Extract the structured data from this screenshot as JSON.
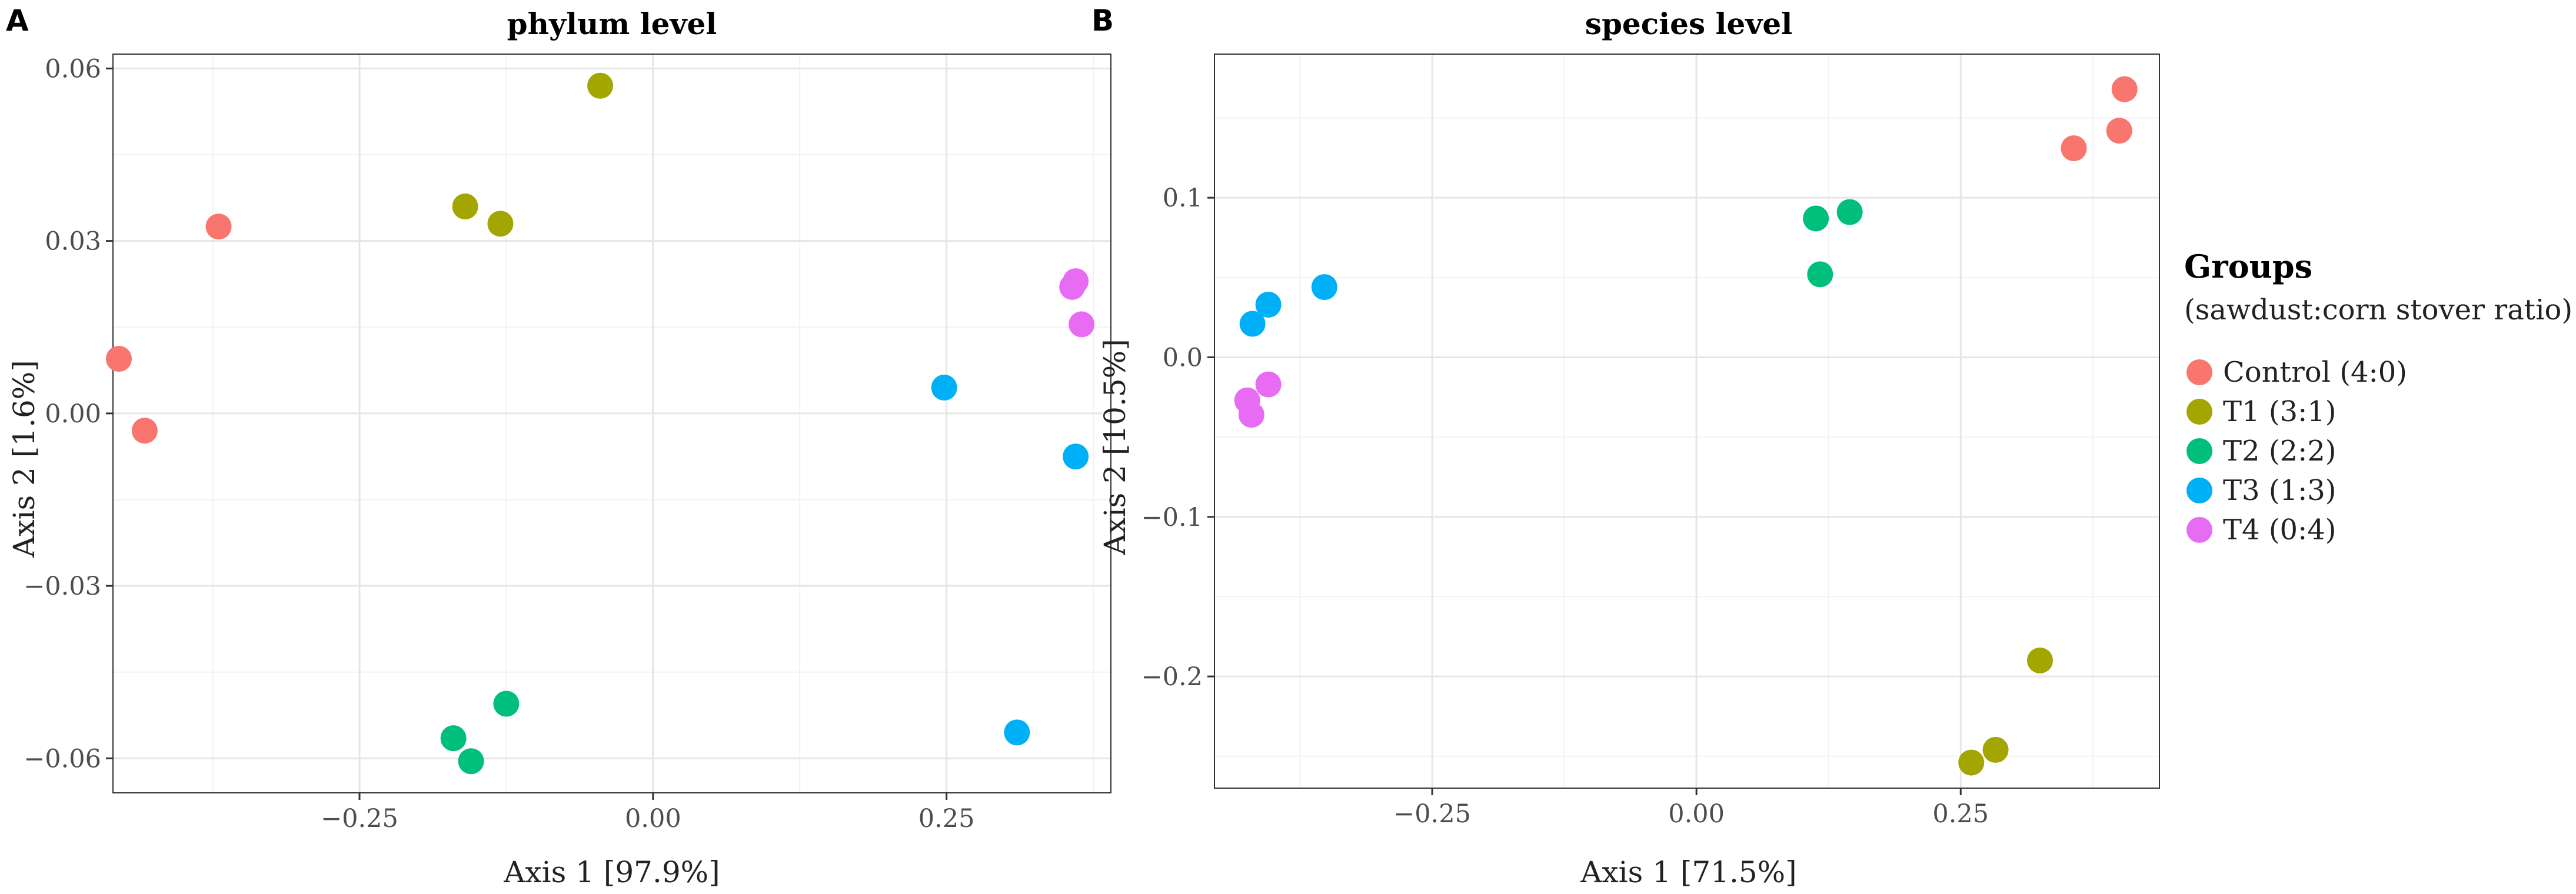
{
  "chart_data": [
    {
      "type": "scatter",
      "panel_letter": "A",
      "title": "phylum level",
      "xlabel": "Axis 1 [97.9%]",
      "ylabel": "Axis 2 [1.6%]",
      "xlim": [
        -0.46,
        0.39
      ],
      "ylim": [
        -0.066,
        0.0625
      ],
      "x_ticks": [
        -0.25,
        0.0,
        0.25
      ],
      "x_tick_labels": [
        "−0.25",
        "0.00",
        "0.25"
      ],
      "y_ticks": [
        -0.06,
        -0.03,
        0.0,
        0.03,
        0.06
      ],
      "y_tick_labels": [
        "−0.06",
        "−0.03",
        "0.00",
        "0.03",
        "0.06"
      ],
      "grid": true,
      "series": [
        {
          "name": "Control (4:0)",
          "color": "#f8766d",
          "points": [
            [
              -0.455,
              0.0095
            ],
            [
              -0.433,
              -0.003
            ],
            [
              -0.37,
              0.0325
            ]
          ]
        },
        {
          "name": "T1 (3:1)",
          "color": "#a3a500",
          "points": [
            [
              -0.16,
              0.036
            ],
            [
              -0.13,
              0.033
            ],
            [
              -0.045,
              0.057
            ]
          ]
        },
        {
          "name": "T2 (2:2)",
          "color": "#00bf7d",
          "points": [
            [
              -0.17,
              -0.0565
            ],
            [
              -0.155,
              -0.0605
            ],
            [
              -0.125,
              -0.0505
            ]
          ]
        },
        {
          "name": "T3 (1:3)",
          "color": "#00b0f6",
          "points": [
            [
              0.248,
              0.0045
            ],
            [
              0.36,
              -0.0075
            ],
            [
              0.31,
              -0.0555
            ]
          ]
        },
        {
          "name": "T4 (0:4)",
          "color": "#e76bf3",
          "points": [
            [
              0.357,
              0.022
            ],
            [
              0.36,
              0.023
            ],
            [
              0.365,
              0.0155
            ]
          ]
        }
      ]
    },
    {
      "type": "scatter",
      "panel_letter": "B",
      "title": "species level",
      "xlabel": "Axis 1 [71.5%]",
      "ylabel": "Axis 2 [10.5%]",
      "xlim": [
        -0.456,
        0.438
      ],
      "ylim": [
        -0.27,
        0.19
      ],
      "x_ticks": [
        -0.25,
        0.0,
        0.25
      ],
      "x_tick_labels": [
        "−0.25",
        "0.00",
        "0.25"
      ],
      "y_ticks": [
        -0.2,
        -0.1,
        0.0,
        0.1
      ],
      "y_tick_labels": [
        "−0.2",
        "−0.1",
        "0.0",
        "0.1"
      ],
      "grid": true,
      "series": [
        {
          "name": "Control (4:0)",
          "color": "#f8766d",
          "points": [
            [
              0.357,
              0.131
            ],
            [
              0.4,
              0.142
            ],
            [
              0.405,
              0.168
            ]
          ]
        },
        {
          "name": "T1 (3:1)",
          "color": "#a3a500",
          "points": [
            [
              0.26,
              -0.254
            ],
            [
              0.283,
              -0.246
            ],
            [
              0.325,
              -0.19
            ]
          ]
        },
        {
          "name": "T2 (2:2)",
          "color": "#00bf7d",
          "points": [
            [
              0.113,
              0.087
            ],
            [
              0.117,
              0.052
            ],
            [
              0.145,
              0.091
            ]
          ]
        },
        {
          "name": "T3 (1:3)",
          "color": "#00b0f6",
          "points": [
            [
              -0.42,
              0.021
            ],
            [
              -0.405,
              0.033
            ],
            [
              -0.352,
              0.044
            ]
          ]
        },
        {
          "name": "T4 (0:4)",
          "color": "#e76bf3",
          "points": [
            [
              -0.425,
              -0.027
            ],
            [
              -0.421,
              -0.036
            ],
            [
              -0.405,
              -0.017
            ]
          ]
        }
      ]
    }
  ],
  "legend": {
    "title": "Groups",
    "subtitle": "(sawdust:corn stover ratio)",
    "placement": "right",
    "items": [
      {
        "label": "Control (4:0)",
        "color": "#f8766d"
      },
      {
        "label": "T1 (3:1)",
        "color": "#a3a500"
      },
      {
        "label": "T2 (2:2)",
        "color": "#00bf7d"
      },
      {
        "label": "T3 (1:3)",
        "color": "#00b0f6"
      },
      {
        "label": "T4 (0:4)",
        "color": "#e76bf3"
      }
    ]
  }
}
